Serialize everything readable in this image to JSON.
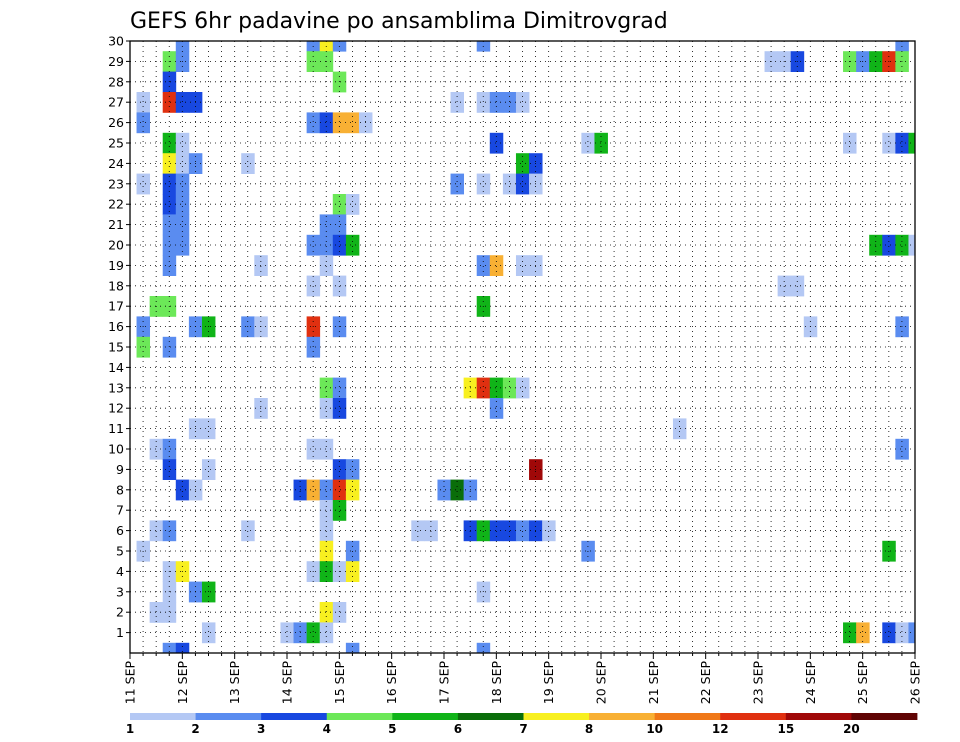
{
  "chart_data": {
    "type": "heatmap",
    "title": "GEFS 6hr padavine po ansamblima Dimitrovgrad",
    "x_tick_labels": [
      "11 SEP",
      "12 SEP",
      "13 SEP",
      "14 SEP",
      "15 SEP",
      "16 SEP",
      "17 SEP",
      "18 SEP",
      "19 SEP",
      "20 SEP",
      "21 SEP",
      "22 SEP",
      "23 SEP",
      "24 SEP",
      "25 SEP",
      "26 SEP"
    ],
    "xlim": [
      0,
      60
    ],
    "ylim": [
      0,
      30
    ],
    "y_tick_labels": [
      "1",
      "2",
      "3",
      "4",
      "5",
      "6",
      "7",
      "8",
      "9",
      "10",
      "11",
      "12",
      "13",
      "14",
      "15",
      "16",
      "17",
      "18",
      "19",
      "20",
      "21",
      "22",
      "23",
      "24",
      "25",
      "26",
      "27",
      "28",
      "29",
      "30"
    ],
    "grid": true,
    "colorbar": {
      "position": "bottom",
      "labels": [
        "1",
        "2",
        "3",
        "4",
        "5",
        "6",
        "7",
        "8",
        "10",
        "12",
        "15",
        "20"
      ],
      "colors": [
        "#b4c8f4",
        "#5a8cf0",
        "#1848e0",
        "#6ce858",
        "#10b418",
        "#0a6e0a",
        "#f8f020",
        "#f8b034",
        "#f07818",
        "#e03010",
        "#a00808",
        "#600404"
      ]
    },
    "cells": [
      [
        4,
        30,
        1
      ],
      [
        14,
        30,
        1
      ],
      [
        15,
        30,
        6
      ],
      [
        16,
        30,
        1
      ],
      [
        27,
        30,
        1
      ],
      [
        59,
        30,
        1
      ],
      [
        3,
        29,
        3
      ],
      [
        4,
        29,
        1
      ],
      [
        14,
        29,
        3
      ],
      [
        15,
        29,
        3
      ],
      [
        49,
        29,
        0
      ],
      [
        50,
        29,
        0
      ],
      [
        51,
        29,
        2
      ],
      [
        55,
        29,
        3
      ],
      [
        56,
        29,
        1
      ],
      [
        57,
        29,
        4
      ],
      [
        58,
        29,
        9
      ],
      [
        59,
        29,
        3
      ],
      [
        3,
        28,
        2
      ],
      [
        16,
        28,
        3
      ],
      [
        1,
        27,
        0
      ],
      [
        3,
        27,
        9
      ],
      [
        4,
        27,
        2
      ],
      [
        5,
        27,
        2
      ],
      [
        25,
        27,
        0
      ],
      [
        27,
        27,
        0
      ],
      [
        28,
        27,
        1
      ],
      [
        29,
        27,
        1
      ],
      [
        30,
        27,
        0
      ],
      [
        1,
        26,
        1
      ],
      [
        14,
        26,
        1
      ],
      [
        15,
        26,
        2
      ],
      [
        16,
        26,
        7
      ],
      [
        17,
        26,
        7
      ],
      [
        18,
        26,
        0
      ],
      [
        3,
        25,
        4
      ],
      [
        4,
        25,
        0
      ],
      [
        28,
        25,
        2
      ],
      [
        35,
        25,
        0
      ],
      [
        36,
        25,
        4
      ],
      [
        55,
        25,
        0
      ],
      [
        58,
        25,
        0
      ],
      [
        59,
        25,
        2
      ],
      [
        60,
        25,
        4
      ],
      [
        3,
        24,
        6
      ],
      [
        4,
        24,
        0
      ],
      [
        5,
        24,
        1
      ],
      [
        9,
        24,
        0
      ],
      [
        30,
        24,
        4
      ],
      [
        31,
        24,
        2
      ],
      [
        1,
        23,
        0
      ],
      [
        3,
        23,
        2
      ],
      [
        4,
        23,
        1
      ],
      [
        25,
        23,
        1
      ],
      [
        27,
        23,
        0
      ],
      [
        29,
        23,
        0
      ],
      [
        30,
        23,
        2
      ],
      [
        31,
        23,
        0
      ],
      [
        3,
        22,
        2
      ],
      [
        4,
        22,
        1
      ],
      [
        16,
        22,
        3
      ],
      [
        17,
        22,
        0
      ],
      [
        3,
        21,
        1
      ],
      [
        4,
        21,
        1
      ],
      [
        15,
        21,
        1
      ],
      [
        16,
        21,
        1
      ],
      [
        3,
        20,
        1
      ],
      [
        4,
        20,
        1
      ],
      [
        14,
        20,
        1
      ],
      [
        15,
        20,
        1
      ],
      [
        16,
        20,
        2
      ],
      [
        17,
        20,
        4
      ],
      [
        57,
        20,
        4
      ],
      [
        58,
        20,
        2
      ],
      [
        59,
        20,
        4
      ],
      [
        60,
        20,
        0
      ],
      [
        3,
        19,
        1
      ],
      [
        10,
        19,
        0
      ],
      [
        15,
        19,
        0
      ],
      [
        27,
        19,
        1
      ],
      [
        28,
        19,
        7
      ],
      [
        30,
        19,
        0
      ],
      [
        31,
        19,
        0
      ],
      [
        14,
        18,
        0
      ],
      [
        16,
        18,
        0
      ],
      [
        50,
        18,
        0
      ],
      [
        51,
        18,
        0
      ],
      [
        2,
        17,
        3
      ],
      [
        3,
        17,
        3
      ],
      [
        27,
        17,
        4
      ],
      [
        1,
        16,
        1
      ],
      [
        5,
        16,
        1
      ],
      [
        6,
        16,
        4
      ],
      [
        9,
        16,
        1
      ],
      [
        10,
        16,
        0
      ],
      [
        14,
        16,
        9
      ],
      [
        16,
        16,
        1
      ],
      [
        52,
        16,
        0
      ],
      [
        59,
        16,
        1
      ],
      [
        1,
        15,
        3
      ],
      [
        3,
        15,
        1
      ],
      [
        14,
        15,
        1
      ],
      [
        15,
        13,
        3
      ],
      [
        16,
        13,
        1
      ],
      [
        26,
        13,
        6
      ],
      [
        27,
        13,
        9
      ],
      [
        28,
        13,
        4
      ],
      [
        29,
        13,
        3
      ],
      [
        30,
        13,
        0
      ],
      [
        10,
        12,
        0
      ],
      [
        15,
        12,
        0
      ],
      [
        16,
        12,
        2
      ],
      [
        28,
        12,
        1
      ],
      [
        5,
        11,
        0
      ],
      [
        6,
        11,
        0
      ],
      [
        42,
        11,
        0
      ],
      [
        2,
        10,
        0
      ],
      [
        3,
        10,
        1
      ],
      [
        14,
        10,
        0
      ],
      [
        15,
        10,
        0
      ],
      [
        59,
        10,
        1
      ],
      [
        3,
        9,
        2
      ],
      [
        6,
        9,
        0
      ],
      [
        16,
        9,
        2
      ],
      [
        17,
        9,
        1
      ],
      [
        31,
        9,
        10
      ],
      [
        4,
        8,
        2
      ],
      [
        5,
        8,
        0
      ],
      [
        13,
        8,
        2
      ],
      [
        14,
        8,
        7
      ],
      [
        15,
        8,
        1
      ],
      [
        16,
        8,
        9
      ],
      [
        17,
        8,
        6
      ],
      [
        24,
        8,
        1
      ],
      [
        25,
        8,
        5
      ],
      [
        26,
        8,
        1
      ],
      [
        15,
        7,
        0
      ],
      [
        16,
        7,
        4
      ],
      [
        2,
        6,
        0
      ],
      [
        3,
        6,
        1
      ],
      [
        9,
        6,
        0
      ],
      [
        15,
        6,
        0
      ],
      [
        22,
        6,
        0
      ],
      [
        23,
        6,
        0
      ],
      [
        26,
        6,
        2
      ],
      [
        27,
        6,
        4
      ],
      [
        28,
        6,
        2
      ],
      [
        29,
        6,
        2
      ],
      [
        30,
        6,
        1
      ],
      [
        31,
        6,
        2
      ],
      [
        32,
        6,
        0
      ],
      [
        1,
        5,
        0
      ],
      [
        15,
        5,
        6
      ],
      [
        17,
        5,
        1
      ],
      [
        35,
        5,
        1
      ],
      [
        58,
        5,
        4
      ],
      [
        3,
        4,
        0
      ],
      [
        4,
        4,
        6
      ],
      [
        14,
        4,
        0
      ],
      [
        15,
        4,
        4
      ],
      [
        16,
        4,
        0
      ],
      [
        17,
        4,
        6
      ],
      [
        3,
        3,
        0
      ],
      [
        5,
        3,
        1
      ],
      [
        6,
        3,
        4
      ],
      [
        27,
        3,
        0
      ],
      [
        2,
        2,
        0
      ],
      [
        3,
        2,
        0
      ],
      [
        15,
        2,
        6
      ],
      [
        16,
        2,
        0
      ],
      [
        6,
        1,
        0
      ],
      [
        12,
        1,
        0
      ],
      [
        13,
        1,
        1
      ],
      [
        14,
        1,
        4
      ],
      [
        15,
        1,
        0
      ],
      [
        55,
        1,
        4
      ],
      [
        56,
        1,
        7
      ],
      [
        58,
        1,
        2
      ],
      [
        59,
        1,
        0
      ],
      [
        60,
        1,
        1
      ],
      [
        3,
        0,
        1
      ],
      [
        4,
        0,
        2
      ],
      [
        17,
        0,
        1
      ],
      [
        27,
        0,
        1
      ]
    ]
  }
}
